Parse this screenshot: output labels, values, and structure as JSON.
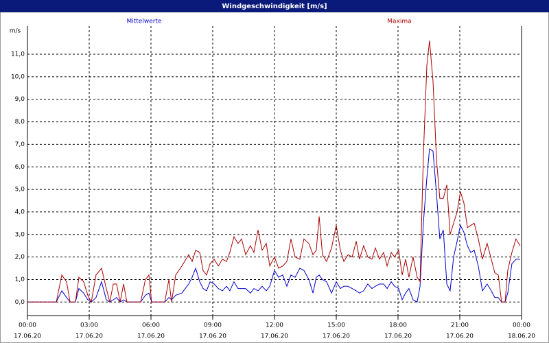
{
  "chart_data": {
    "type": "line",
    "title": "Windgeschwindigkeit [m/s]",
    "y_unit": "m/s",
    "x": [
      0,
      1.4,
      1.67,
      1.9,
      2.07,
      2.33,
      2.5,
      2.73,
      2.93,
      3.1,
      3.33,
      3.6,
      3.83,
      4.0,
      4.17,
      4.33,
      4.5,
      4.67,
      4.83,
      5.5,
      5.73,
      5.9,
      6.03,
      6.67,
      6.87,
      7.0,
      7.2,
      7.5,
      7.83,
      8.0,
      8.17,
      8.37,
      8.53,
      8.7,
      8.87,
      9.07,
      9.27,
      9.47,
      9.67,
      9.83,
      10.03,
      10.23,
      10.4,
      10.6,
      10.83,
      11.0,
      11.2,
      11.4,
      11.6,
      11.77,
      12.0,
      12.2,
      12.4,
      12.6,
      12.8,
      13.0,
      13.23,
      13.43,
      13.67,
      13.87,
      14.03,
      14.17,
      14.33,
      14.53,
      14.77,
      15.0,
      15.2,
      15.37,
      15.57,
      15.77,
      15.97,
      16.13,
      16.33,
      16.53,
      16.73,
      16.9,
      17.1,
      17.3,
      17.47,
      17.67,
      17.83,
      18.03,
      18.2,
      18.37,
      18.53,
      18.73,
      18.93,
      19.07,
      19.23,
      19.4,
      19.53,
      19.7,
      19.87,
      20.03,
      20.2,
      20.37,
      20.53,
      20.7,
      20.87,
      21.03,
      21.2,
      21.37,
      21.53,
      21.7,
      21.9,
      22.1,
      22.33,
      22.53,
      22.7,
      22.87,
      23.03,
      23.2,
      23.33,
      23.53,
      23.73,
      23.93
    ],
    "series": [
      {
        "name": "Mittelwerte",
        "color": "#0000cc",
        "values": [
          0,
          0,
          0.5,
          0.2,
          0,
          0,
          0.6,
          0.4,
          0.1,
          0,
          0.2,
          0.9,
          0.1,
          0,
          0.1,
          0.2,
          0,
          0.1,
          0,
          0,
          0.3,
          0.4,
          0,
          0,
          0.2,
          0.1,
          0.3,
          0.4,
          0.8,
          1.1,
          1.5,
          0.9,
          0.6,
          0.5,
          0.9,
          0.8,
          0.6,
          0.5,
          0.7,
          0.5,
          0.9,
          0.6,
          0.6,
          0.6,
          0.4,
          0.6,
          0.5,
          0.7,
          0.5,
          0.7,
          1.4,
          1.1,
          1.2,
          0.7,
          1.2,
          1.1,
          1.5,
          1.4,
          1.0,
          0.4,
          1.1,
          1.2,
          1.0,
          0.9,
          0.4,
          0.9,
          0.6,
          0.7,
          0.7,
          0.6,
          0.5,
          0.4,
          0.5,
          0.8,
          0.6,
          0.7,
          0.8,
          0.8,
          0.6,
          0.9,
          0.7,
          0.6,
          0.1,
          0.4,
          0.6,
          0.1,
          0,
          0.7,
          3.5,
          5.5,
          6.8,
          6.7,
          4.8,
          2.8,
          3.2,
          0.8,
          0.5,
          2.0,
          2.7,
          3.4,
          3.1,
          2.5,
          2.2,
          2.3,
          1.6,
          0.5,
          0.8,
          0.5,
          0.2,
          0.2,
          0,
          0,
          0.4,
          1.7,
          1.9,
          1.9
        ]
      },
      {
        "name": "Maxima",
        "color": "#aa0000",
        "values": [
          0,
          0,
          1.2,
          0.9,
          0,
          0,
          1.1,
          0.9,
          0.3,
          0,
          1.2,
          1.5,
          0.6,
          0,
          0.8,
          0.8,
          0,
          0.8,
          0,
          0,
          1.0,
          1.2,
          0,
          0,
          1.0,
          0,
          1.2,
          1.6,
          2.1,
          1.8,
          2.3,
          2.2,
          1.4,
          1.2,
          1.7,
          1.9,
          1.6,
          1.9,
          1.8,
          2.2,
          2.9,
          2.6,
          2.8,
          2.1,
          2.5,
          2.2,
          3.2,
          2.3,
          2.6,
          1.6,
          2.0,
          1.5,
          1.6,
          1.8,
          2.8,
          2.0,
          1.9,
          2.8,
          2.6,
          2.1,
          2.3,
          3.8,
          2.1,
          1.8,
          2.4,
          3.4,
          2.3,
          1.8,
          2.1,
          2.0,
          2.7,
          1.9,
          2.5,
          2.0,
          1.9,
          2.4,
          1.9,
          2.2,
          1.6,
          2.2,
          2.0,
          2.3,
          1.2,
          1.9,
          1.1,
          2.0,
          1.1,
          0.9,
          6.5,
          10.5,
          11.6,
          9.8,
          6.3,
          4.6,
          4.6,
          5.2,
          3.0,
          3.5,
          4.0,
          4.9,
          4.4,
          3.3,
          3.4,
          3.5,
          2.8,
          1.9,
          2.6,
          1.9,
          1.3,
          1.2,
          0,
          0,
          1.4,
          2.2,
          2.8,
          2.5
        ]
      }
    ],
    "xlim": [
      0,
      24
    ],
    "xticks": [
      {
        "value": 0,
        "label": "00:00"
      },
      {
        "value": 3,
        "label": "03:00"
      },
      {
        "value": 6,
        "label": "06:00"
      },
      {
        "value": 9,
        "label": "09:00"
      },
      {
        "value": 12,
        "label": "12:00"
      },
      {
        "value": 15,
        "label": "15:00"
      },
      {
        "value": 18,
        "label": "18:00"
      },
      {
        "value": 21,
        "label": "21:00"
      },
      {
        "value": 24,
        "label": "00:00"
      }
    ],
    "xtick_dates": [
      "17.06.20",
      "17.06.20",
      "17.06.20",
      "17.06.20",
      "17.06.20",
      "17.06.20",
      "17.06.20",
      "17.06.20",
      "18.06.20"
    ],
    "ylim": [
      -0.6,
      12.25
    ],
    "yticks": [
      {
        "value": 0,
        "label": "0,0"
      },
      {
        "value": 1,
        "label": "1,0"
      },
      {
        "value": 2,
        "label": "2,0"
      },
      {
        "value": 3,
        "label": "3,0"
      },
      {
        "value": 4,
        "label": "4,0"
      },
      {
        "value": 5,
        "label": "5,0"
      },
      {
        "value": 6,
        "label": "6,0"
      },
      {
        "value": 7,
        "label": "7,0"
      },
      {
        "value": 8,
        "label": "8,0"
      },
      {
        "value": 9,
        "label": "9,0"
      },
      {
        "value": 10,
        "label": "10,0"
      },
      {
        "value": 11,
        "label": "11,0"
      }
    ],
    "grid": true
  }
}
